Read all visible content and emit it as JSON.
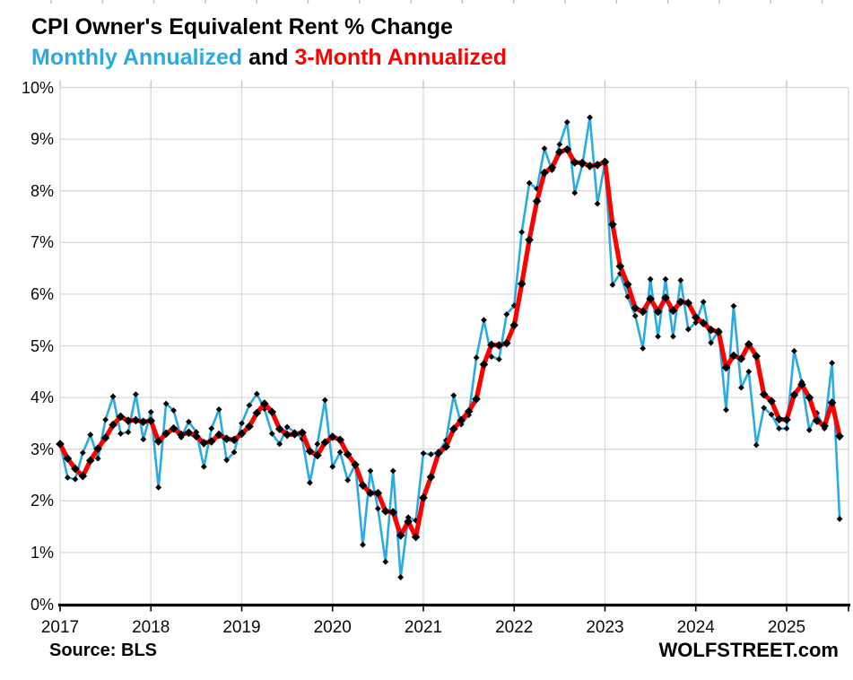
{
  "header": {
    "title": "CPI Owner's Equivalent Rent % Change",
    "subtitle_blue": "Monthly Annualized",
    "subtitle_and": " and ",
    "subtitle_red": "3-Month Annualized"
  },
  "footer": {
    "source": "Source: BLS",
    "brand": "WOLFSTREET.com"
  },
  "colors": {
    "blue": "#29ABE2",
    "red": "#FF0000",
    "marker": "#000000",
    "grid": "#D9D9D9",
    "axis": "#000000",
    "border": "#C6C6C6"
  },
  "chart_data": {
    "type": "line",
    "title": "CPI Owner's Equivalent Rent % Change",
    "x_start": "2017-01",
    "x_end": "2025-08",
    "x_tick_labels": [
      "2017",
      "2018",
      "2019",
      "2020",
      "2021",
      "2022",
      "2023",
      "2024",
      "2025"
    ],
    "ylim": [
      0,
      10
    ],
    "y_tick_labels": [
      "0%",
      "1%",
      "2%",
      "3%",
      "4%",
      "5%",
      "6%",
      "7%",
      "8%",
      "9%",
      "10%"
    ],
    "grid": true,
    "legend_position": "subtitle",
    "series": [
      {
        "name": "Monthly Annualized",
        "color": "#29ABE2",
        "values": [
          3.1,
          2.45,
          2.42,
          2.93,
          3.28,
          2.82,
          3.57,
          4.02,
          3.3,
          3.33,
          4.06,
          3.19,
          3.72,
          2.26,
          3.88,
          3.75,
          3.23,
          3.53,
          3.33,
          2.66,
          3.4,
          3.77,
          2.79,
          2.94,
          3.5,
          3.85,
          4.07,
          3.78,
          3.3,
          3.1,
          3.43,
          3.33,
          3.2,
          2.35,
          3.1,
          3.95,
          2.66,
          2.94,
          2.4,
          2.71,
          1.15,
          2.58,
          1.85,
          0.82,
          2.58,
          0.52,
          1.68,
          1.62,
          2.92,
          2.9,
          2.95,
          3.17,
          4.04,
          3.48,
          3.66,
          4.77,
          5.5,
          4.79,
          4.74,
          5.61,
          5.78,
          7.2,
          8.15,
          8.04,
          8.82,
          8.4,
          8.9,
          9.33,
          7.96,
          8.5,
          9.42,
          7.75,
          8.55,
          6.18,
          6.4,
          5.95,
          5.58,
          4.95,
          6.29,
          5.18,
          6.29,
          5.18,
          6.27,
          5.32,
          5.45,
          5.85,
          5.06,
          5.3,
          3.76,
          5.77,
          4.19,
          4.5,
          3.08,
          3.8,
          3.67,
          3.4,
          3.4,
          4.9,
          4.3,
          3.37,
          3.7,
          3.4,
          4.67,
          1.65
        ]
      },
      {
        "name": "3-Month Annualized",
        "color": "#FF0000",
        "values": [
          3.1,
          2.82,
          2.62,
          2.48,
          2.78,
          3.01,
          3.22,
          3.47,
          3.63,
          3.55,
          3.56,
          3.53,
          3.55,
          3.15,
          3.3,
          3.4,
          3.28,
          3.32,
          3.25,
          3.12,
          3.15,
          3.28,
          3.2,
          3.18,
          3.3,
          3.44,
          3.7,
          3.88,
          3.72,
          3.39,
          3.28,
          3.29,
          3.32,
          2.96,
          2.88,
          3.13,
          3.24,
          3.18,
          2.9,
          2.7,
          2.3,
          2.15,
          2.15,
          1.8,
          1.78,
          1.33,
          1.6,
          1.3,
          2.06,
          2.46,
          2.92,
          3.05,
          3.39,
          3.56,
          3.73,
          3.97,
          4.64,
          5.02,
          5.01,
          5.05,
          5.4,
          6.2,
          7.05,
          7.8,
          8.35,
          8.45,
          8.75,
          8.8,
          8.55,
          8.54,
          8.48,
          8.5,
          8.56,
          7.35,
          6.54,
          6.19,
          5.73,
          5.66,
          5.91,
          5.66,
          5.93,
          5.68,
          5.85,
          5.83,
          5.55,
          5.44,
          5.31,
          5.27,
          4.58,
          4.81,
          4.75,
          5.03,
          4.8,
          4.06,
          3.93,
          3.58,
          3.57,
          4.05,
          4.25,
          4.0,
          3.55,
          3.45,
          3.9,
          3.25
        ]
      }
    ]
  },
  "layout_note": "white chart, gray 1% gridlines, yearly vertical gridlines, thick black x-axis baseline with outward year ticks, black diamond markers on both lines"
}
